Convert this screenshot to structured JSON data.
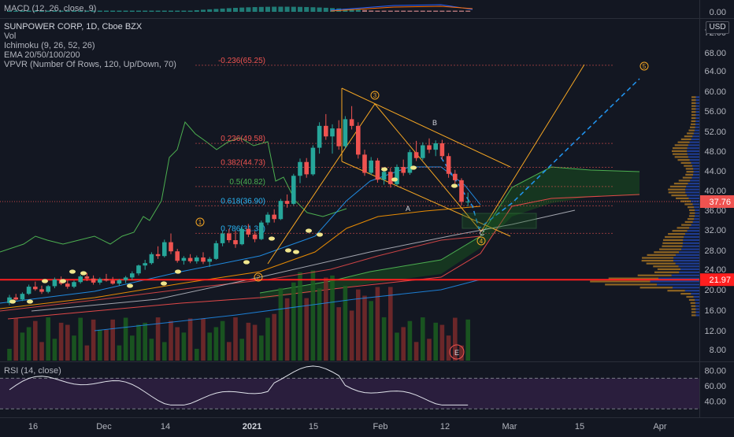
{
  "macd_legend": "MACD (12, 26, close, 9)",
  "macd_axis_label": "0.00",
  "price_legend": {
    "title": "SUNPOWER CORP, 1D, Cboe BZX",
    "indicators": [
      "Vol",
      "Ichimoku (9, 26, 52, 26)",
      "EMA 20/50/100/200",
      "VPVR (Number Of Rows, 120, Up/Down, 70)"
    ]
  },
  "currency": "USD",
  "rsi_legend": "RSI (14, close)",
  "colors": {
    "background": "#131722",
    "up": "#26a69a",
    "down": "#ef5350",
    "fib": "#2962ff",
    "pattern": "#f5a623",
    "ichimoku_lagging": "#4caf50",
    "cloud": "#1b5e20",
    "support": "#ff1f1f",
    "rsi": "#e0e3eb",
    "rsi_band": "#2a1e3d"
  },
  "chart_data": [
    {
      "type": "line",
      "panel": "macd",
      "title": "MACD (12, 26, close, 9)",
      "yticks": [
        "0.00"
      ]
    },
    {
      "type": "candlestick",
      "panel": "price",
      "title": "SUNPOWER CORP, 1D, Cboe BZX",
      "yticks": [
        "72.00",
        "68.00",
        "64.00",
        "60.00",
        "56.00",
        "52.00",
        "48.00",
        "44.00",
        "40.00",
        "36.00",
        "32.00",
        "28.00",
        "24.00",
        "20.00",
        "16.00",
        "12.00",
        "8.00"
      ],
      "xticks": [
        "16",
        "Dec",
        "14",
        "2021",
        "15",
        "Feb",
        "12",
        "Mar",
        "15",
        "Apr"
      ],
      "last_price": "37.76",
      "support_level": "21.97",
      "ylim": [
        5,
        76
      ],
      "candles": [
        {
          "o": 17.4,
          "h": 19.0,
          "l": 17.0,
          "c": 18.5
        },
        {
          "o": 18.5,
          "h": 19.2,
          "l": 17.9,
          "c": 18.1
        },
        {
          "o": 18.1,
          "h": 19.5,
          "l": 17.8,
          "c": 19.2
        },
        {
          "o": 19.2,
          "h": 21.0,
          "l": 19.0,
          "c": 20.6
        },
        {
          "o": 20.6,
          "h": 21.6,
          "l": 19.8,
          "c": 20.1
        },
        {
          "o": 20.1,
          "h": 20.8,
          "l": 19.2,
          "c": 19.6
        },
        {
          "o": 19.6,
          "h": 20.9,
          "l": 19.3,
          "c": 20.7
        },
        {
          "o": 20.7,
          "h": 22.4,
          "l": 20.3,
          "c": 22.0
        },
        {
          "o": 22.0,
          "h": 22.6,
          "l": 20.9,
          "c": 21.2
        },
        {
          "o": 21.2,
          "h": 21.9,
          "l": 20.2,
          "c": 20.6
        },
        {
          "o": 20.6,
          "h": 21.8,
          "l": 20.3,
          "c": 21.5
        },
        {
          "o": 21.5,
          "h": 22.9,
          "l": 21.2,
          "c": 22.6
        },
        {
          "o": 22.6,
          "h": 23.3,
          "l": 21.7,
          "c": 22.2
        },
        {
          "o": 22.2,
          "h": 22.8,
          "l": 21.0,
          "c": 21.4
        },
        {
          "o": 21.4,
          "h": 22.4,
          "l": 21.0,
          "c": 22.1
        },
        {
          "o": 22.1,
          "h": 23.1,
          "l": 21.6,
          "c": 21.8
        },
        {
          "o": 21.8,
          "h": 22.5,
          "l": 21.0,
          "c": 21.2
        },
        {
          "o": 21.2,
          "h": 22.1,
          "l": 20.8,
          "c": 21.9
        },
        {
          "o": 21.9,
          "h": 22.7,
          "l": 21.3,
          "c": 22.4
        },
        {
          "o": 22.4,
          "h": 23.6,
          "l": 21.9,
          "c": 23.2
        },
        {
          "o": 23.2,
          "h": 25.0,
          "l": 22.8,
          "c": 24.8
        },
        {
          "o": 24.8,
          "h": 26.0,
          "l": 23.9,
          "c": 25.3
        },
        {
          "o": 25.3,
          "h": 27.6,
          "l": 25.0,
          "c": 27.2
        },
        {
          "o": 27.2,
          "h": 28.8,
          "l": 26.2,
          "c": 26.8
        },
        {
          "o": 26.8,
          "h": 30.1,
          "l": 26.5,
          "c": 29.6
        },
        {
          "o": 29.6,
          "h": 31.3,
          "l": 27.2,
          "c": 27.8
        },
        {
          "o": 27.8,
          "h": 28.3,
          "l": 25.4,
          "c": 25.8
        },
        {
          "o": 25.8,
          "h": 26.8,
          "l": 25.0,
          "c": 26.4
        },
        {
          "o": 26.4,
          "h": 27.2,
          "l": 25.3,
          "c": 25.7
        },
        {
          "o": 25.7,
          "h": 26.9,
          "l": 25.2,
          "c": 26.5
        },
        {
          "o": 26.5,
          "h": 27.6,
          "l": 25.1,
          "c": 25.6
        },
        {
          "o": 25.6,
          "h": 26.6,
          "l": 24.5,
          "c": 26.2
        },
        {
          "o": 26.2,
          "h": 29.9,
          "l": 26.0,
          "c": 29.4
        },
        {
          "o": 29.4,
          "h": 31.8,
          "l": 28.8,
          "c": 31.3
        },
        {
          "o": 31.3,
          "h": 32.2,
          "l": 29.5,
          "c": 30.0
        },
        {
          "o": 30.0,
          "h": 31.8,
          "l": 28.5,
          "c": 29.2
        },
        {
          "o": 29.2,
          "h": 32.6,
          "l": 29.0,
          "c": 32.2
        },
        {
          "o": 32.2,
          "h": 33.2,
          "l": 30.6,
          "c": 31.1
        },
        {
          "o": 31.1,
          "h": 31.8,
          "l": 29.6,
          "c": 30.2
        },
        {
          "o": 30.2,
          "h": 33.9,
          "l": 30.0,
          "c": 33.5
        },
        {
          "o": 33.5,
          "h": 35.6,
          "l": 33.0,
          "c": 35.1
        },
        {
          "o": 35.1,
          "h": 36.2,
          "l": 33.5,
          "c": 34.2
        },
        {
          "o": 34.2,
          "h": 38.3,
          "l": 34.0,
          "c": 37.9
        },
        {
          "o": 37.9,
          "h": 39.2,
          "l": 36.5,
          "c": 37.3
        },
        {
          "o": 37.3,
          "h": 43.4,
          "l": 37.0,
          "c": 43.0
        },
        {
          "o": 43.0,
          "h": 46.5,
          "l": 41.5,
          "c": 45.8
        },
        {
          "o": 45.8,
          "h": 46.6,
          "l": 42.6,
          "c": 43.3
        },
        {
          "o": 43.3,
          "h": 49.2,
          "l": 43.0,
          "c": 48.7
        },
        {
          "o": 48.7,
          "h": 53.8,
          "l": 47.5,
          "c": 53.1
        },
        {
          "o": 53.1,
          "h": 55.4,
          "l": 50.3,
          "c": 51.0
        },
        {
          "o": 51.0,
          "h": 53.4,
          "l": 47.5,
          "c": 52.6
        },
        {
          "o": 52.6,
          "h": 54.2,
          "l": 48.3,
          "c": 49.0
        },
        {
          "o": 49.0,
          "h": 55.0,
          "l": 48.5,
          "c": 54.4
        },
        {
          "o": 54.4,
          "h": 57.0,
          "l": 52.4,
          "c": 53.1
        },
        {
          "o": 53.1,
          "h": 53.8,
          "l": 46.5,
          "c": 47.3
        },
        {
          "o": 47.3,
          "h": 48.3,
          "l": 43.0,
          "c": 43.6
        },
        {
          "o": 43.6,
          "h": 46.8,
          "l": 43.2,
          "c": 46.1
        },
        {
          "o": 46.1,
          "h": 46.6,
          "l": 41.6,
          "c": 42.2
        },
        {
          "o": 42.2,
          "h": 44.3,
          "l": 41.2,
          "c": 43.8
        },
        {
          "o": 43.8,
          "h": 44.6,
          "l": 40.6,
          "c": 41.3
        },
        {
          "o": 41.3,
          "h": 45.3,
          "l": 41.0,
          "c": 44.8
        },
        {
          "o": 44.8,
          "h": 46.3,
          "l": 43.0,
          "c": 43.6
        },
        {
          "o": 43.6,
          "h": 48.3,
          "l": 43.2,
          "c": 47.8
        },
        {
          "o": 47.8,
          "h": 50.1,
          "l": 46.0,
          "c": 46.6
        },
        {
          "o": 46.6,
          "h": 49.8,
          "l": 46.2,
          "c": 49.2
        },
        {
          "o": 49.2,
          "h": 50.6,
          "l": 47.6,
          "c": 48.3
        },
        {
          "o": 48.3,
          "h": 50.2,
          "l": 47.0,
          "c": 49.6
        },
        {
          "o": 49.6,
          "h": 50.3,
          "l": 46.3,
          "c": 47.0
        },
        {
          "o": 47.0,
          "h": 47.6,
          "l": 42.6,
          "c": 43.4
        },
        {
          "o": 43.4,
          "h": 44.2,
          "l": 41.4,
          "c": 42.1
        },
        {
          "o": 42.1,
          "h": 42.5,
          "l": 37.0,
          "c": 37.7
        },
        {
          "o": 37.7,
          "h": 39.6,
          "l": 36.8,
          "c": 37.76
        }
      ],
      "fib_levels": [
        {
          "ratio": "-0.236",
          "label": "-0.236(65.25)",
          "value": 65.25
        },
        {
          "ratio": "0.236",
          "label": "0.236(49.58)",
          "value": 49.58
        },
        {
          "ratio": "0.382",
          "label": "0.382(44.73)",
          "value": 44.73
        },
        {
          "ratio": "0.5",
          "label": "0.5(40.82)",
          "value": 40.82
        },
        {
          "ratio": "0.618",
          "label": "0.618(36.90)",
          "value": 36.9
        },
        {
          "ratio": "0.786",
          "label": "0.786(31.33)",
          "value": 31.33
        }
      ],
      "wave_labels": [
        "1",
        "2",
        "3",
        "4",
        "5",
        "A",
        "B",
        "C",
        "E"
      ]
    },
    {
      "type": "line",
      "panel": "rsi",
      "title": "RSI (14, close)",
      "yticks": [
        "80.00",
        "60.00",
        "40.00"
      ],
      "ylim": [
        20,
        90
      ],
      "bands": [
        70,
        30
      ]
    }
  ]
}
